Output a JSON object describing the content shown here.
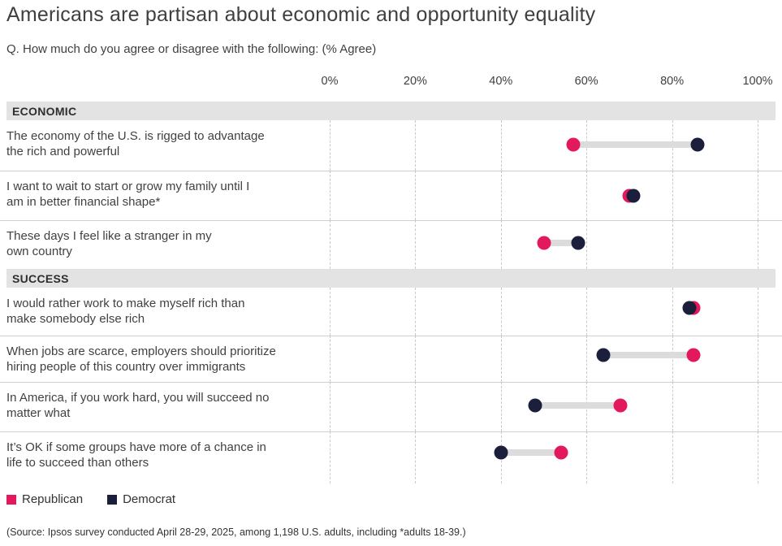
{
  "header": {
    "title": "Americans are partisan about economic and opportunity equality",
    "subtitle": "Q. How much do you agree or disagree with the following: (% Agree)"
  },
  "source": {
    "text": "(Source: Ipsos survey conducted April 28-29, 2025, among 1,198 U.S. adults, including *adults 18-39.)"
  },
  "chart_data": {
    "type": "dumbbell",
    "title": "Americans are partisan about economic and opportunity equality",
    "subtitle": "Q. How much do you agree or disagree with the following: (% Agree)",
    "x_axis": {
      "ticks": [
        "0%",
        "20%",
        "40%",
        "60%",
        "80%",
        "100%"
      ],
      "min": 0,
      "max": 100,
      "gridlines": "dashed"
    },
    "legend_position": "bottom-left",
    "series": [
      {
        "name": "Republican",
        "color": "#e21a5d"
      },
      {
        "name": "Democrat",
        "color": "#1b1f3c"
      }
    ],
    "sections": [
      {
        "label": "ECONOMIC"
      },
      {
        "label": "SUCCESS"
      }
    ],
    "rows": [
      {
        "section": "ECONOMIC",
        "label": "The economy of the U.S. is rigged to advantage the rich and powerful",
        "lines": [
          "The economy of the U.S. is rigged to advantage",
          "the rich and powerful"
        ],
        "republican": 57,
        "democrat": 86
      },
      {
        "section": "ECONOMIC",
        "label": "I want to wait to start or grow my family until I am in better financial shape*",
        "lines": [
          "I want to wait to start or grow my family until I",
          "am in better financial shape*"
        ],
        "republican": 70,
        "democrat": 71
      },
      {
        "section": "ECONOMIC",
        "label": "These days I feel like a stranger in my own country",
        "lines": [
          "These days I feel like a stranger in my",
          "own country"
        ],
        "republican": 50,
        "democrat": 58
      },
      {
        "section": "SUCCESS",
        "label": "I would rather work to make myself rich than make somebody else rich",
        "lines": [
          "I would rather work to make myself rich than",
          "make somebody else rich"
        ],
        "republican": 85,
        "democrat": 84
      },
      {
        "section": "SUCCESS",
        "label": "When jobs are scarce, employers should prioritize hiring people of this country over immigrants",
        "lines": [
          "When jobs are scarce, employers should prioritize",
          "hiring people of this country over immigrants"
        ],
        "republican": 85,
        "democrat": 64
      },
      {
        "section": "SUCCESS",
        "label": "In America, if you work hard, you will succeed no matter what",
        "lines": [
          "In America, if you work hard, you will succeed no",
          "matter what"
        ],
        "republican": 68,
        "democrat": 48
      },
      {
        "section": "SUCCESS",
        "label": "It’s OK if some groups have more of a chance in life to succeed than others",
        "lines": [
          "It’s OK if some groups have more of a chance in",
          "life to succeed than others"
        ],
        "republican": 54,
        "democrat": 40
      }
    ]
  }
}
